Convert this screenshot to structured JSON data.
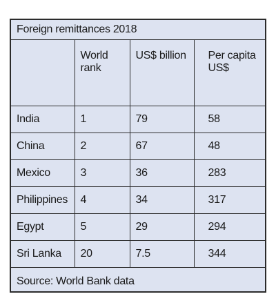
{
  "chart_data": {
    "type": "table",
    "title": "Foreign remittances 2018",
    "columns": [
      "",
      "World rank",
      "US$ billion",
      "Per capita US$"
    ],
    "rows": [
      {
        "country": "India",
        "rank": "1",
        "billion": "79",
        "per_capita": "58"
      },
      {
        "country": "China",
        "rank": "2",
        "billion": "67",
        "per_capita": "48"
      },
      {
        "country": "Mexico",
        "rank": "3",
        "billion": "36",
        "per_capita": "283"
      },
      {
        "country": "Philippines",
        "rank": "4",
        "billion": "34",
        "per_capita": "317"
      },
      {
        "country": "Egypt",
        "rank": "5",
        "billion": "29",
        "per_capita": "294"
      },
      {
        "country": "Sri Lanka",
        "rank": "20",
        "billion": "7.5",
        "per_capita": "344"
      }
    ],
    "source": "Source: World Bank data"
  },
  "colors": {
    "background": "#dde3f1",
    "border": "#2b2b2b",
    "text": "#1a1a1a"
  }
}
